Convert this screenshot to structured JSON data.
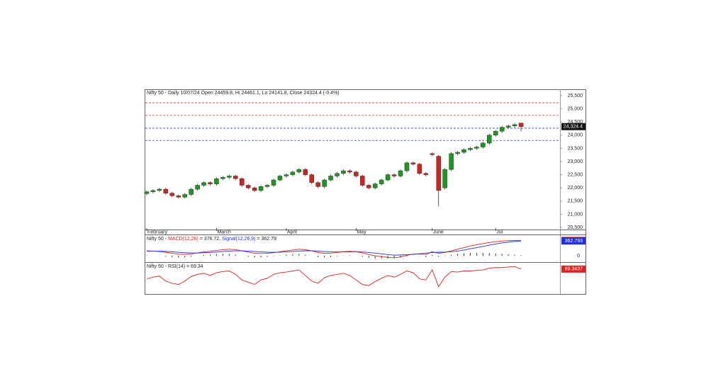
{
  "chart_data": [
    {
      "type": "candlestick",
      "title": "Nifty 50 - Daily 10/07/24 Open 24459.8, Hi 24461.1, Lo 24141.8, Close 24324.4 (-0.4%)",
      "categories": [
        "February",
        null,
        null,
        null,
        null,
        null,
        null,
        null,
        null,
        null,
        null,
        "March",
        null,
        null,
        null,
        null,
        null,
        null,
        null,
        null,
        null,
        null,
        "April",
        null,
        null,
        null,
        null,
        null,
        null,
        null,
        null,
        null,
        null,
        "May",
        null,
        null,
        null,
        null,
        null,
        null,
        null,
        null,
        null,
        null,
        null,
        "June",
        null,
        null,
        null,
        null,
        null,
        null,
        null,
        null,
        null,
        "Jul",
        null,
        null,
        null,
        null
      ],
      "open": [
        21780,
        21850,
        21900,
        21950,
        21800,
        21700,
        21650,
        21750,
        21950,
        22100,
        22200,
        22150,
        22350,
        22400,
        22450,
        22350,
        22100,
        22000,
        21900,
        22050,
        22100,
        22300,
        22450,
        22500,
        22600,
        22700,
        22500,
        22200,
        22050,
        22300,
        22450,
        22550,
        22650,
        22600,
        22450,
        22100,
        22000,
        22150,
        22300,
        22500,
        22450,
        22650,
        22950,
        22900,
        22550,
        23300,
        23200,
        22000,
        22700,
        23300,
        23350,
        23450,
        23500,
        23550,
        23700,
        24000,
        24150,
        24300,
        24350,
        24459.8
      ],
      "high": [
        21900,
        21950,
        22000,
        22000,
        21850,
        21750,
        21800,
        22000,
        22150,
        22250,
        22250,
        22400,
        22450,
        22500,
        22500,
        22400,
        22150,
        22050,
        22100,
        22150,
        22350,
        22500,
        22550,
        22650,
        22750,
        22750,
        22550,
        22250,
        22350,
        22500,
        22600,
        22700,
        22700,
        22650,
        22500,
        22150,
        22200,
        22350,
        22550,
        22550,
        22700,
        23000,
        23000,
        22950,
        22600,
        23350,
        23250,
        22750,
        23350,
        23400,
        23500,
        23550,
        23600,
        23750,
        24050,
        24200,
        24350,
        24400,
        24450,
        24461.1
      ],
      "low": [
        21720,
        21790,
        21840,
        21740,
        21640,
        21590,
        21590,
        21690,
        21890,
        22040,
        22090,
        22090,
        22290,
        22340,
        22290,
        22040,
        21940,
        21840,
        21840,
        21990,
        22040,
        22240,
        22390,
        22440,
        22540,
        22440,
        22140,
        21990,
        21990,
        22240,
        22390,
        22490,
        22540,
        22390,
        22040,
        21940,
        21940,
        22090,
        22240,
        22390,
        22390,
        22590,
        22840,
        22490,
        22440,
        23200,
        21300,
        21940,
        22640,
        23240,
        23290,
        23390,
        23440,
        23490,
        23640,
        23940,
        24090,
        24240,
        24290,
        24141.8
      ],
      "close": [
        21850,
        21900,
        21950,
        21800,
        21700,
        21650,
        21750,
        21950,
        22100,
        22200,
        22150,
        22350,
        22400,
        22450,
        22350,
        22100,
        22000,
        21900,
        22050,
        22100,
        22300,
        22450,
        22500,
        22600,
        22700,
        22500,
        22200,
        22050,
        22300,
        22450,
        22550,
        22650,
        22600,
        22450,
        22100,
        22000,
        22150,
        22300,
        22500,
        22450,
        22650,
        22950,
        22900,
        22550,
        22500,
        23260,
        21900,
        22700,
        23300,
        23350,
        23450,
        23500,
        23550,
        23700,
        24000,
        24150,
        24300,
        24350,
        24400,
        24324.4
      ],
      "last_close_label": "24,324.4",
      "up_color": "#1a9a1a",
      "down_color": "#d42020",
      "hlines": [
        {
          "value": 25230,
          "color": "#e03030"
        },
        {
          "value": 24750,
          "color": "#e03030"
        },
        {
          "value": 24265,
          "color": "#3040d0"
        },
        {
          "value": 23800,
          "color": "#3040d0"
        }
      ],
      "ylim": [
        20420,
        25715
      ],
      "yticks": [
        {
          "value": 20500,
          "label": "20,500"
        },
        {
          "value": 21000,
          "label": "21,000"
        },
        {
          "value": 21500,
          "label": "21,500"
        },
        {
          "value": 22000,
          "label": "22,000"
        },
        {
          "value": 22500,
          "label": "22,500"
        },
        {
          "value": 23000,
          "label": "23,000"
        },
        {
          "value": 23500,
          "label": "23,500"
        },
        {
          "value": 24000,
          "label": "24,000"
        },
        {
          "value": 24500,
          "label": "24,500"
        },
        {
          "value": 25000,
          "label": "25,000"
        },
        {
          "value": 25500,
          "label": "25,500"
        }
      ]
    },
    {
      "type": "line",
      "title": [
        "Nifty 50 - ",
        "MACD(12,26)",
        " = 376.72, ",
        "Signal(12,26,9)",
        " = 362.79"
      ],
      "series": [
        {
          "name": "MACD(12,26)",
          "color": "#e02020",
          "values": [
            120,
            115,
            105,
            85,
            60,
            40,
            35,
            45,
            70,
            95,
            110,
            130,
            150,
            160,
            150,
            120,
            90,
            60,
            55,
            60,
            75,
            100,
            120,
            140,
            160,
            150,
            120,
            80,
            60,
            65,
            80,
            100,
            110,
            100,
            70,
            30,
            0,
            -20,
            -40,
            -50,
            -30,
            10,
            40,
            40,
            30,
            100,
            60,
            80,
            120,
            160,
            200,
            240,
            270,
            300,
            325,
            345,
            360,
            370,
            375,
            376.72
          ],
          "value_labels": [
            null,
            null,
            null,
            null,
            null,
            null,
            null,
            null,
            null,
            null,
            null,
            null,
            null,
            null,
            null,
            null,
            null,
            null,
            null,
            null,
            null,
            null,
            null,
            null,
            null,
            null,
            null,
            null,
            null,
            null,
            null,
            null,
            null,
            null,
            null,
            null,
            null,
            null,
            null,
            null,
            null,
            null,
            null,
            null,
            null,
            null,
            null,
            null,
            null,
            null,
            null,
            null,
            null,
            null,
            null,
            null,
            null,
            null,
            null,
            "376.72"
          ]
        },
        {
          "name": "Signal(12,26,9)",
          "color": "#2030e0",
          "values": [
            110,
            112,
            111,
            106,
            97,
            85,
            75,
            69,
            69,
            74,
            81,
            91,
            103,
            114,
            121,
            121,
            115,
            104,
            94,
            87,
            85,
            88,
            94,
            103,
            115,
            122,
            122,
            114,
            103,
            95,
            92,
            94,
            97,
            98,
            92,
            80,
            64,
            47,
            30,
            14,
            20,
            25,
            35,
            50,
            65,
            80,
            85,
            90,
            100,
            115,
            140,
            170,
            200,
            230,
            260,
            290,
            315,
            335,
            350,
            362.793
          ]
        }
      ],
      "histogram": [
        10,
        3,
        -6,
        -21,
        -37,
        -45,
        -40,
        -24,
        1,
        21,
        29,
        39,
        47,
        46,
        29,
        -1,
        -25,
        -44,
        -39,
        -27,
        -10,
        12,
        26,
        37,
        45,
        28,
        -2,
        -34,
        -43,
        -30,
        -12,
        6,
        13,
        2,
        -22,
        -50,
        -64,
        -67,
        -70,
        -64,
        -50,
        -15,
        5,
        -10,
        -35,
        20,
        -25,
        -10,
        20,
        45,
        60,
        70,
        70,
        70,
        65,
        55,
        45,
        35,
        25,
        14
      ],
      "ylim": [
        -104,
        487
      ],
      "yticks": [
        0
      ]
    },
    {
      "type": "line",
      "title": "Nifty 50 - RSI(14) = 69.34",
      "series": [
        {
          "name": "RSI(14)",
          "color": "#e02020",
          "values": [
            52,
            55,
            57,
            48,
            44,
            42,
            48,
            56,
            60,
            62,
            58,
            63,
            65,
            66,
            60,
            50,
            46,
            42,
            50,
            53,
            60,
            63,
            64,
            66,
            68,
            58,
            48,
            44,
            54,
            58,
            60,
            62,
            58,
            50,
            42,
            40,
            47,
            53,
            58,
            55,
            60,
            66,
            63,
            52,
            50,
            68,
            38,
            55,
            65,
            64,
            66,
            66,
            67,
            68,
            71,
            72,
            72,
            73,
            74,
            69.3437
          ]
        }
      ],
      "ylim": [
        25,
        78
      ]
    }
  ]
}
